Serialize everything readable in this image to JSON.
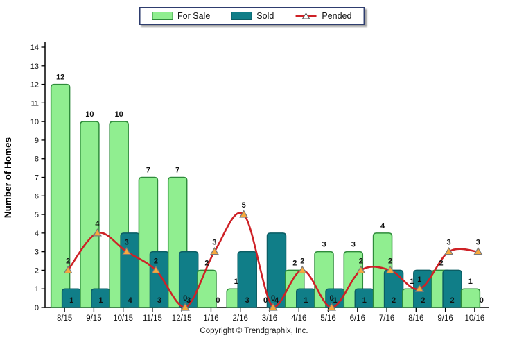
{
  "legend": {
    "items": [
      {
        "label": "For Sale",
        "type": "bar",
        "color": "#90EE90",
        "border": "#2E8B3A"
      },
      {
        "label": "Sold",
        "type": "bar",
        "color": "#107E88",
        "border": "#0B5D64"
      },
      {
        "label": "Pended",
        "type": "line",
        "color": "#CE2126",
        "marker_fill": "#FFFFFF",
        "marker_stroke": "#555555"
      }
    ]
  },
  "chart_data": {
    "type": "combo",
    "categories": [
      "8/15",
      "9/15",
      "10/15",
      "11/15",
      "12/15",
      "1/16",
      "2/16",
      "3/16",
      "4/16",
      "5/16",
      "6/16",
      "7/16",
      "8/16",
      "9/16",
      "10/16"
    ],
    "series": [
      {
        "name": "For Sale",
        "type": "bar",
        "color": "#90EE90",
        "border_color": "#2E8B3A",
        "values": [
          12,
          10,
          10,
          7,
          7,
          2,
          1,
          0,
          2,
          3,
          3,
          4,
          1,
          2,
          1
        ]
      },
      {
        "name": "Sold",
        "type": "bar",
        "color": "#107E88",
        "border_color": "#0B5D64",
        "values": [
          1,
          1,
          4,
          3,
          3,
          0,
          3,
          4,
          1,
          1,
          1,
          2,
          2,
          2,
          0
        ]
      },
      {
        "name": "Pended",
        "type": "line",
        "color": "#CE2126",
        "marker_fill": "#F9A93C",
        "marker_stroke": "#7A7A7A",
        "values": [
          2,
          4,
          3,
          2,
          0,
          3,
          5,
          0,
          2,
          0,
          2,
          2,
          1,
          3,
          3
        ]
      }
    ],
    "ylabel": "Number of Homes",
    "xlabel": "",
    "ylim": [
      0,
      14
    ],
    "ytick_step": 1,
    "yticks": [
      0,
      1,
      2,
      3,
      4,
      5,
      6,
      7,
      8,
      9,
      10,
      11,
      12,
      13,
      14
    ],
    "grid": false,
    "legend_position": "top-center",
    "show_data_labels": true,
    "label_color": "#111111",
    "axis_color": "#000000"
  },
  "footer": {
    "copyright": "Copyright © Trendgraphix, Inc."
  }
}
